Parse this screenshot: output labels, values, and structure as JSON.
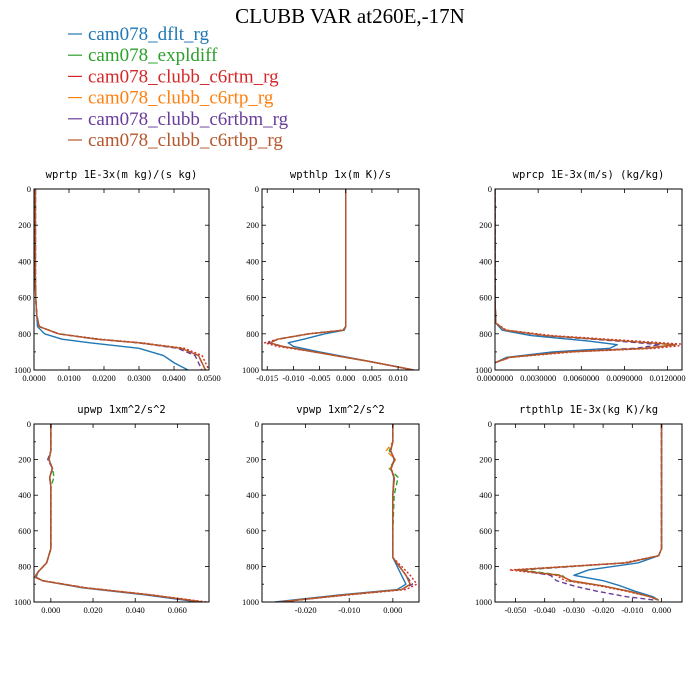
{
  "figure_title": "CLUBB VAR at260E,-17N",
  "colors": {
    "cam078_dflt_rg": "#1f77b4",
    "cam078_expldiff": "#2ca02c",
    "cam078_clubb_c6rtm_rg": "#d62728",
    "cam078_clubb_c6rtp_rg": "#ff7f0e",
    "cam078_clubb_c6rtbm_rg": "#6a3d9a",
    "cam078_clubb_c6rtbp_rg": "#b5562b"
  },
  "legend": [
    {
      "label": "cam078_dflt_rg",
      "color": "#1f77b4",
      "dash": "solid"
    },
    {
      "label": "cam078_expldiff",
      "color": "#2ca02c",
      "dash": "dashed"
    },
    {
      "label": "cam078_clubb_c6rtm_rg",
      "color": "#d62728",
      "dash": "dotted"
    },
    {
      "label": "cam078_clubb_c6rtp_rg",
      "color": "#ff7f0e",
      "dash": "dashed"
    },
    {
      "label": "cam078_clubb_c6rtbm_rg",
      "color": "#6a3d9a",
      "dash": "dashed"
    },
    {
      "label": "cam078_clubb_c6rtbp_rg",
      "color": "#b5562b",
      "dash": "solid"
    }
  ],
  "chart_data": [
    {
      "type": "line",
      "title": "wprtp  1E-3x(m kg)/(s kg)",
      "xlim": [
        0.0,
        0.05
      ],
      "ylim": [
        1000,
        0
      ],
      "xticks": [
        0.0,
        0.01,
        0.02,
        0.03,
        0.04,
        0.05
      ],
      "xtick_labels": [
        "0.0000",
        "0.0100",
        "0.0200",
        "0.0300",
        "0.0400",
        "0.0500"
      ],
      "yticks": [
        0,
        200,
        400,
        600,
        800,
        1000
      ],
      "ytick_labels": [
        "0",
        "200",
        "400",
        "600",
        "800",
        "1000"
      ],
      "y": [
        0,
        100,
        200,
        300,
        400,
        500,
        600,
        700,
        760,
        800,
        830,
        850,
        880,
        920,
        960,
        1000
      ],
      "series": [
        {
          "name": "cam078_dflt_rg",
          "values": [
            0.0004,
            0.0004,
            0.0004,
            0.0004,
            0.0004,
            0.0004,
            0.0005,
            0.0008,
            0.001,
            0.003,
            0.008,
            0.016,
            0.03,
            0.037,
            0.04,
            0.044
          ]
        },
        {
          "name": "cam078_expldiff",
          "values": [
            0.0004,
            0.0004,
            0.0004,
            0.0004,
            0.0004,
            0.0004,
            0.0005,
            0.0008,
            0.0015,
            0.007,
            0.018,
            0.03,
            0.042,
            0.047,
            0.048,
            0.049
          ]
        },
        {
          "name": "cam078_clubb_c6rtm_rg",
          "values": [
            0.0004,
            0.0004,
            0.0004,
            0.0004,
            0.0004,
            0.0004,
            0.0005,
            0.0008,
            0.0015,
            0.007,
            0.019,
            0.031,
            0.043,
            0.048,
            0.049,
            0.05
          ]
        },
        {
          "name": "cam078_clubb_c6rtp_rg",
          "values": [
            0.0004,
            0.0004,
            0.0004,
            0.0004,
            0.0004,
            0.0004,
            0.0005,
            0.0008,
            0.0015,
            0.007,
            0.018,
            0.03,
            0.042,
            0.047,
            0.048,
            0.049
          ]
        },
        {
          "name": "cam078_clubb_c6rtbm_rg",
          "values": [
            0.0004,
            0.0004,
            0.0004,
            0.0004,
            0.0004,
            0.0004,
            0.0005,
            0.0008,
            0.0015,
            0.007,
            0.018,
            0.03,
            0.041,
            0.046,
            0.047,
            0.048
          ]
        },
        {
          "name": "cam078_clubb_c6rtbp_rg",
          "values": [
            0.0004,
            0.0004,
            0.0004,
            0.0004,
            0.0004,
            0.0004,
            0.0005,
            0.0008,
            0.0015,
            0.007,
            0.018,
            0.03,
            0.042,
            0.047,
            0.048,
            0.049
          ]
        }
      ]
    },
    {
      "type": "line",
      "title": "wpthlp  1x(m K)/s",
      "xlim": [
        -0.016,
        0.014
      ],
      "ylim": [
        1000,
        0
      ],
      "xticks": [
        -0.015,
        -0.01,
        -0.005,
        0.0,
        0.005,
        0.01
      ],
      "xtick_labels": [
        "-0.015",
        "-0.010",
        "-0.005",
        "0.000",
        "0.005",
        "0.010"
      ],
      "yticks": [
        0,
        200,
        400,
        600,
        800,
        1000
      ],
      "ytick_labels": [
        "0",
        "200",
        "400",
        "600",
        "800",
        "1000"
      ],
      "y": [
        0,
        250,
        500,
        700,
        760,
        780,
        800,
        830,
        850,
        870,
        900,
        950,
        1000
      ],
      "series": [
        {
          "name": "cam078_dflt_rg",
          "values": [
            0.0,
            0.0,
            0.0,
            0.0,
            0.0,
            -0.0003,
            -0.004,
            -0.008,
            -0.011,
            -0.01,
            -0.005,
            0.004,
            0.013
          ]
        },
        {
          "name": "cam078_expldiff",
          "values": [
            0.0,
            0.0,
            0.0,
            0.0,
            0.0,
            -0.0005,
            -0.007,
            -0.013,
            -0.0145,
            -0.012,
            -0.006,
            0.004,
            0.013
          ]
        },
        {
          "name": "cam078_clubb_c6rtm_rg",
          "values": [
            0.0,
            0.0,
            0.0,
            0.0,
            0.0,
            -0.0005,
            -0.007,
            -0.013,
            -0.0155,
            -0.013,
            -0.006,
            0.004,
            0.013
          ]
        },
        {
          "name": "cam078_clubb_c6rtp_rg",
          "values": [
            0.0,
            0.0,
            0.0,
            0.0,
            0.0,
            -0.0005,
            -0.007,
            -0.013,
            -0.0145,
            -0.012,
            -0.006,
            0.004,
            0.013
          ]
        },
        {
          "name": "cam078_clubb_c6rtbm_rg",
          "values": [
            0.0,
            0.0,
            0.0,
            0.0,
            0.0,
            -0.0005,
            -0.007,
            -0.013,
            -0.0148,
            -0.012,
            -0.006,
            0.004,
            0.013
          ]
        },
        {
          "name": "cam078_clubb_c6rtbp_rg",
          "values": [
            0.0,
            0.0,
            0.0,
            0.0,
            0.0,
            -0.0005,
            -0.007,
            -0.013,
            -0.0145,
            -0.012,
            -0.006,
            0.004,
            0.013
          ]
        }
      ]
    },
    {
      "type": "line",
      "title": "wprcp  1E-3x(m/s) (kg/kg)",
      "xlim": [
        0.0,
        0.013
      ],
      "ylim": [
        1000,
        0
      ],
      "xticks": [
        0.0,
        0.003,
        0.006,
        0.009,
        0.012
      ],
      "xtick_labels": [
        "0.0000000",
        "0.0030000",
        "0.0060000",
        "0.0090000",
        "0.0120000"
      ],
      "yticks": [
        0,
        200,
        400,
        600,
        800,
        1000
      ],
      "ytick_labels": [
        "0",
        "200",
        "400",
        "600",
        "800",
        "1000"
      ],
      "y": [
        0,
        200,
        400,
        600,
        740,
        780,
        810,
        840,
        860,
        880,
        900,
        930,
        960
      ],
      "series": [
        {
          "name": "cam078_dflt_rg",
          "values": [
            0.0,
            0.0,
            0.0,
            0.0,
            5e-05,
            0.0005,
            0.0025,
            0.0065,
            0.0085,
            0.008,
            0.004,
            0.0008,
            0.0
          ]
        },
        {
          "name": "cam078_expldiff",
          "values": [
            0.0,
            0.0,
            0.0,
            0.0,
            5e-05,
            0.0007,
            0.0035,
            0.009,
            0.0125,
            0.0105,
            0.005,
            0.001,
            0.0
          ]
        },
        {
          "name": "cam078_clubb_c6rtm_rg",
          "values": [
            0.0,
            0.0,
            0.0,
            0.0,
            5e-05,
            0.0008,
            0.004,
            0.0098,
            0.0135,
            0.0112,
            0.0055,
            0.0011,
            0.0
          ]
        },
        {
          "name": "cam078_clubb_c6rtp_rg",
          "values": [
            0.0,
            0.0,
            0.0,
            0.0,
            5e-05,
            0.0007,
            0.0035,
            0.009,
            0.0124,
            0.0104,
            0.005,
            0.001,
            0.0
          ]
        },
        {
          "name": "cam078_clubb_c6rtbm_rg",
          "values": [
            0.0,
            0.0,
            0.0,
            0.0,
            5e-05,
            0.0007,
            0.0034,
            0.0085,
            0.0115,
            0.0098,
            0.0048,
            0.001,
            0.0
          ]
        },
        {
          "name": "cam078_clubb_c6rtbp_rg",
          "values": [
            0.0,
            0.0,
            0.0,
            0.0,
            5e-05,
            0.0007,
            0.0035,
            0.009,
            0.0126,
            0.0106,
            0.005,
            0.001,
            0.0
          ]
        }
      ]
    },
    {
      "type": "line",
      "title": "upwp  1xm^2/s^2",
      "xlim": [
        -0.008,
        0.075
      ],
      "ylim": [
        1000,
        0
      ],
      "xticks": [
        0.0,
        0.02,
        0.04,
        0.06
      ],
      "xtick_labels": [
        "0.000",
        "0.020",
        "0.040",
        "0.060"
      ],
      "yticks": [
        0,
        200,
        400,
        600,
        800,
        1000
      ],
      "ytick_labels": [
        "0",
        "200",
        "400",
        "600",
        "800",
        "1000"
      ],
      "y": [
        0,
        150,
        200,
        250,
        300,
        350,
        500,
        700,
        780,
        830,
        860,
        880,
        920,
        960,
        1000
      ],
      "series": [
        {
          "name": "cam078_dflt_rg",
          "values": [
            0.0,
            0.0,
            -0.0008,
            0.0006,
            -0.0005,
            0.0,
            0.0,
            0.0,
            -0.002,
            -0.006,
            -0.007,
            -0.004,
            0.015,
            0.045,
            0.07
          ]
        },
        {
          "name": "cam078_expldiff",
          "values": [
            0.0,
            0.0,
            -0.001,
            0.0008,
            0.0015,
            0.0,
            0.0,
            0.0,
            -0.002,
            -0.006,
            -0.0075,
            -0.004,
            0.016,
            0.047,
            0.072
          ]
        },
        {
          "name": "cam078_clubb_c6rtm_rg",
          "values": [
            0.0,
            0.0,
            -0.001,
            0.0008,
            -0.0006,
            0.0,
            0.0,
            0.0,
            -0.002,
            -0.006,
            -0.0078,
            -0.004,
            0.017,
            0.048,
            0.074
          ]
        },
        {
          "name": "cam078_clubb_c6rtp_rg",
          "values": [
            0.0,
            0.0,
            -0.001,
            0.0008,
            -0.0006,
            0.0,
            0.0,
            0.0,
            -0.002,
            -0.006,
            -0.0075,
            -0.004,
            0.016,
            0.047,
            0.072
          ]
        },
        {
          "name": "cam078_clubb_c6rtbm_rg",
          "values": [
            0.0,
            0.0,
            -0.0015,
            0.0008,
            -0.0006,
            0.0,
            0.0,
            0.0,
            -0.002,
            -0.006,
            -0.0075,
            -0.004,
            0.016,
            0.046,
            0.071
          ]
        },
        {
          "name": "cam078_clubb_c6rtbp_rg",
          "values": [
            0.0,
            0.0,
            -0.001,
            0.0008,
            -0.0006,
            0.0,
            0.0,
            0.0,
            -0.002,
            -0.006,
            -0.0075,
            -0.004,
            0.016,
            0.047,
            0.072
          ]
        }
      ]
    },
    {
      "type": "line",
      "title": "vpwp  1xm^2/s^2",
      "xlim": [
        -0.03,
        0.006
      ],
      "ylim": [
        1000,
        0
      ],
      "xticks": [
        -0.02,
        -0.01,
        0.0
      ],
      "xtick_labels": [
        "-0.020",
        "-0.010",
        "0.000"
      ],
      "yticks": [
        0,
        200,
        400,
        600,
        800,
        1000
      ],
      "ytick_labels": [
        "0",
        "200",
        "400",
        "600",
        "800",
        "1000"
      ],
      "y": [
        0,
        100,
        150,
        200,
        250,
        300,
        400,
        600,
        750,
        800,
        850,
        900,
        930,
        960,
        1000
      ],
      "series": [
        {
          "name": "cam078_dflt_rg",
          "values": [
            0.0,
            0.0,
            -0.0005,
            0.0003,
            -0.0004,
            0.0002,
            0.0,
            0.0,
            0.0,
            0.001,
            0.002,
            0.003,
            0.001,
            -0.012,
            -0.027
          ]
        },
        {
          "name": "cam078_expldiff",
          "values": [
            0.0,
            0.0,
            -0.0008,
            0.0005,
            -0.0008,
            0.0012,
            0.0003,
            0.0,
            0.0,
            0.0015,
            0.003,
            0.004,
            0.002,
            -0.011,
            -0.026
          ]
        },
        {
          "name": "cam078_clubb_c6rtm_rg",
          "values": [
            0.0,
            0.0,
            -0.0005,
            0.0004,
            -0.0004,
            0.0003,
            0.0,
            0.0,
            0.0,
            0.002,
            0.004,
            0.0055,
            0.003,
            -0.01,
            -0.026
          ]
        },
        {
          "name": "cam078_clubb_c6rtp_rg",
          "values": [
            0.0,
            0.0,
            -0.0015,
            0.0006,
            -0.0006,
            0.0004,
            0.0,
            0.0,
            0.0,
            0.0015,
            0.003,
            0.004,
            0.002,
            -0.011,
            -0.026
          ]
        },
        {
          "name": "cam078_clubb_c6rtbm_rg",
          "values": [
            0.0,
            0.0,
            -0.0005,
            0.0004,
            -0.0004,
            0.0003,
            0.0,
            0.0,
            0.0,
            0.0015,
            0.003,
            0.0045,
            0.002,
            -0.011,
            -0.026
          ]
        },
        {
          "name": "cam078_clubb_c6rtbp_rg",
          "values": [
            0.0,
            0.0,
            -0.0005,
            0.0004,
            -0.0004,
            0.0003,
            0.0,
            0.0,
            0.0,
            0.0015,
            0.003,
            0.004,
            0.002,
            -0.011,
            -0.026
          ]
        }
      ]
    },
    {
      "type": "line",
      "title": "rtpthlp  1E-3x(kg K)/kg",
      "xlim": [
        -0.057,
        0.007
      ],
      "ylim": [
        1000,
        0
      ],
      "xticks": [
        -0.05,
        -0.04,
        -0.03,
        -0.02,
        -0.01,
        0.0
      ],
      "xtick_labels": [
        "-0.050",
        "-0.040",
        "-0.030",
        "-0.020",
        "-0.010",
        "0.000"
      ],
      "yticks": [
        0,
        200,
        400,
        600,
        800,
        1000
      ],
      "ytick_labels": [
        "0",
        "200",
        "400",
        "600",
        "800",
        "1000"
      ],
      "y": [
        0,
        300,
        600,
        700,
        740,
        780,
        820,
        850,
        880,
        910,
        940,
        970,
        990
      ],
      "series": [
        {
          "name": "cam078_dflt_rg",
          "values": [
            0.0,
            0.0,
            0.0,
            0.0,
            -0.001,
            -0.008,
            -0.025,
            -0.03,
            -0.02,
            -0.014,
            -0.009,
            -0.003,
            -0.001
          ]
        },
        {
          "name": "cam078_expldiff",
          "values": [
            0.0,
            0.0,
            0.0,
            0.0,
            -0.001,
            -0.012,
            -0.048,
            -0.034,
            -0.032,
            -0.02,
            -0.011,
            -0.004,
            -0.001
          ]
        },
        {
          "name": "cam078_clubb_c6rtm_rg",
          "values": [
            0.0,
            0.0,
            0.0,
            0.0,
            -0.001,
            -0.013,
            -0.052,
            -0.036,
            -0.033,
            -0.021,
            -0.012,
            -0.004,
            -0.001
          ]
        },
        {
          "name": "cam078_clubb_c6rtp_rg",
          "values": [
            0.0,
            0.0,
            0.0,
            0.0,
            -0.001,
            -0.012,
            -0.05,
            -0.035,
            -0.031,
            -0.02,
            -0.011,
            -0.004,
            -0.001
          ]
        },
        {
          "name": "cam078_clubb_c6rtbm_rg",
          "values": [
            0.0,
            0.0,
            0.0,
            0.0,
            -0.001,
            -0.012,
            -0.049,
            -0.038,
            -0.036,
            -0.03,
            -0.022,
            -0.012,
            -0.002
          ]
        },
        {
          "name": "cam078_clubb_c6rtbp_rg",
          "values": [
            0.0,
            0.0,
            0.0,
            0.0,
            -0.001,
            -0.012,
            -0.05,
            -0.035,
            -0.031,
            -0.02,
            -0.011,
            -0.004,
            -0.001
          ]
        }
      ]
    }
  ]
}
